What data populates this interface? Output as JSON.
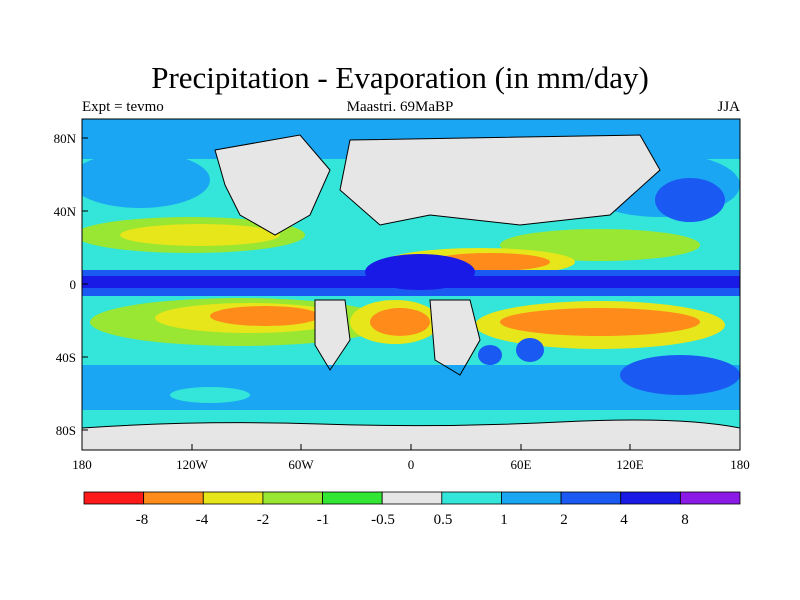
{
  "title": "Precipitation - Evaporation (in mm/day)",
  "subtitle_left": "Expt = tevmo",
  "subtitle_center": "Maastri.  69MaBP",
  "subtitle_right": "JJA",
  "lat_ticks": [
    "80N",
    "40N",
    "0",
    "40S",
    "80S"
  ],
  "lon_ticks": [
    "180",
    "120W",
    "60W",
    "0",
    "60E",
    "120E",
    "180"
  ],
  "colorbar": {
    "labels": [
      "-8",
      "-4",
      "-2",
      "-1",
      "-0.5",
      "0.5",
      "1",
      "2",
      "4",
      "8"
    ],
    "colors": [
      "#ff1a1a",
      "#ff8c1a",
      "#e6e61a",
      "#99e633",
      "#33e633",
      "#e6e6e6",
      "#33e6d9",
      "#1aa6f2",
      "#1a59f2",
      "#1a1ae6",
      "#8c1ae6"
    ]
  },
  "field_colors": {
    "ocean_wet": "#1aa6f2",
    "wet_light": "#33e6d9",
    "neutral": "#e6e6e6",
    "dry1": "#99e633",
    "dry2": "#e6e61a",
    "dry3": "#ff8c1a",
    "very_wet": "#1a59f2",
    "itcz": "#1a1ae6",
    "green": "#33e633"
  }
}
